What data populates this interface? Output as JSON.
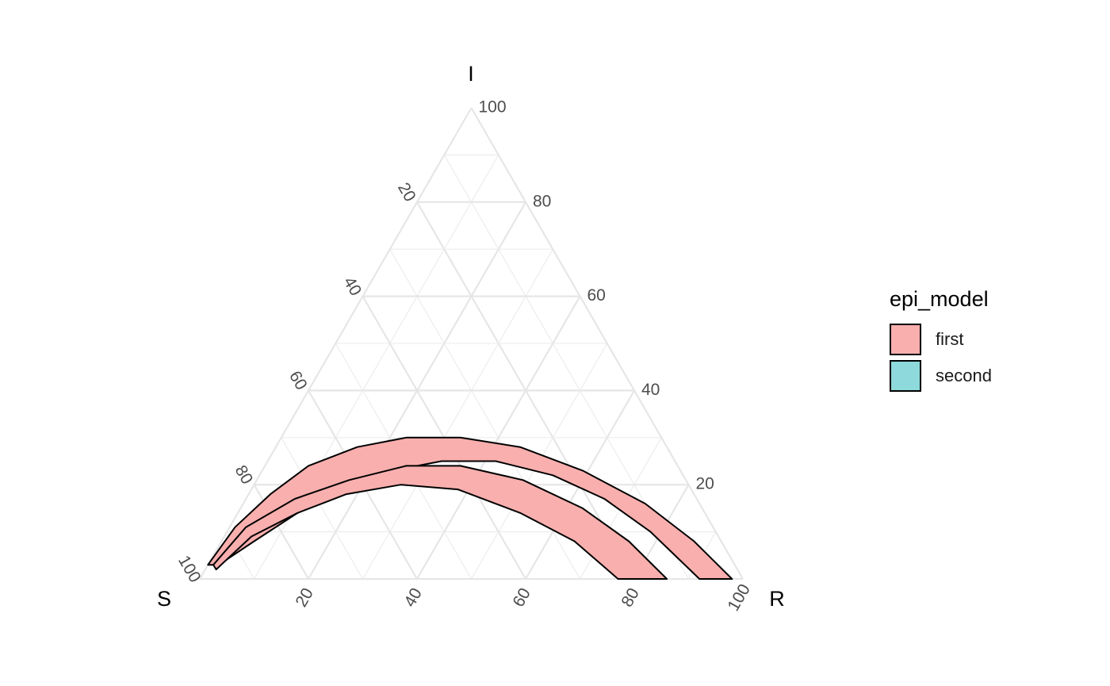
{
  "chart_data": {
    "type": "area",
    "subtype": "ternary",
    "vertices": {
      "left": "S",
      "top": "I",
      "right": "R"
    },
    "ticks": [
      20,
      40,
      60,
      80,
      100
    ],
    "scale": [
      0,
      100
    ],
    "legend": {
      "title": "epi_model",
      "position": "right",
      "entries": [
        {
          "label": "first",
          "color": "#F8AFAE"
        },
        {
          "label": "second",
          "color": "#8DD9DB"
        }
      ]
    },
    "series": [
      {
        "name": "first",
        "color": "#F8AFAE",
        "description": "outer band (S, I, R composition %)",
        "outer": [
          [
            97,
            3,
            0
          ],
          [
            88,
            11,
            1
          ],
          [
            78,
            18,
            4
          ],
          [
            68,
            24,
            8
          ],
          [
            57,
            28,
            15
          ],
          [
            47,
            30,
            23
          ],
          [
            37,
            30,
            33
          ],
          [
            27,
            28,
            45
          ],
          [
            18,
            23,
            59
          ],
          [
            10,
            16,
            74
          ],
          [
            5,
            8,
            87
          ],
          [
            2,
            0,
            98
          ]
        ],
        "inner": [
          [
            8,
            0,
            92
          ],
          [
            12,
            10,
            78
          ],
          [
            17,
            17,
            66
          ],
          [
            24,
            22,
            54
          ],
          [
            33,
            25,
            42
          ],
          [
            43,
            25,
            32
          ],
          [
            53,
            23,
            24
          ],
          [
            64,
            19,
            17
          ],
          [
            75,
            14,
            11
          ],
          [
            86,
            8,
            6
          ],
          [
            95,
            3,
            2
          ]
        ]
      },
      {
        "name": "first",
        "color": "#F8AFAE",
        "description": "inner band (S, I, R composition %)",
        "outer": [
          [
            96,
            3,
            1
          ],
          [
            86,
            11,
            3
          ],
          [
            74,
            17,
            9
          ],
          [
            62,
            21,
            17
          ],
          [
            50,
            24,
            26
          ],
          [
            40,
            24,
            36
          ],
          [
            30,
            21,
            49
          ],
          [
            22,
            15,
            63
          ],
          [
            17,
            8,
            75
          ],
          [
            14,
            0,
            86
          ]
        ],
        "inner": [
          [
            23,
            0,
            77
          ],
          [
            27,
            8,
            65
          ],
          [
            34,
            14,
            52
          ],
          [
            43,
            19,
            38
          ],
          [
            53,
            20,
            27
          ],
          [
            64,
            18,
            18
          ],
          [
            75,
            14,
            11
          ],
          [
            86,
            9,
            5
          ],
          [
            96,
            2,
            2
          ]
        ]
      }
    ]
  }
}
